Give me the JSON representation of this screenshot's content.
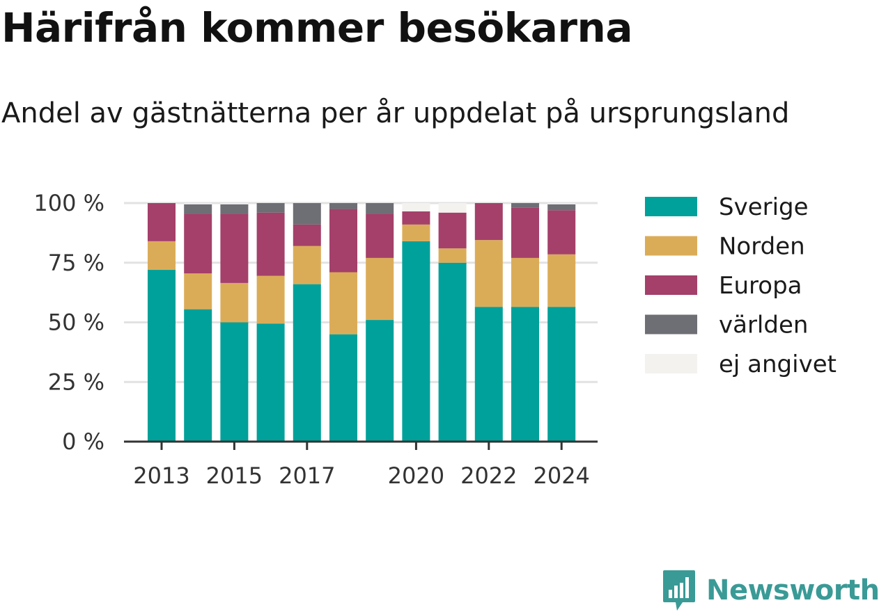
{
  "header": {
    "title": "Härifrån kommer besökarna",
    "subtitle": "Andel av gästnätterna per år uppdelat på ursprungsland"
  },
  "brand": {
    "name": "Newsworthy",
    "icon": "newsworthy-logo-icon",
    "color": "#3a9a96"
  },
  "chart_data": {
    "type": "bar",
    "stacked": true,
    "title": "Härifrån kommer besökarna",
    "subtitle": "Andel av gästnätterna per år uppdelat på ursprungsland",
    "xlabel": "",
    "ylabel": "",
    "x": [
      2013,
      2014,
      2015,
      2016,
      2017,
      2018,
      2019,
      2020,
      2021,
      2022,
      2023,
      2024
    ],
    "x_tick_labels": [
      "2013",
      "2015",
      "2017",
      "2020",
      "2022",
      "2024"
    ],
    "x_tick_positions": [
      2013,
      2015,
      2017,
      2020,
      2022,
      2024
    ],
    "y_ticks": [
      "0 %",
      "25 %",
      "50 %",
      "75 %",
      "100 %"
    ],
    "ylim": [
      0,
      100
    ],
    "grid": true,
    "legend_position": "right",
    "series": [
      {
        "name": "Sverige",
        "color": "#00a19a",
        "values": [
          72,
          55.5,
          50,
          49.5,
          66,
          45,
          51,
          84,
          75,
          56.5,
          56.5,
          56.5
        ]
      },
      {
        "name": "Norden",
        "color": "#dbac58",
        "values": [
          12,
          15,
          16.5,
          20,
          16,
          26,
          26,
          7,
          6,
          28,
          20.5,
          22
        ]
      },
      {
        "name": "Europa",
        "color": "#a4406a",
        "values": [
          16,
          25,
          29,
          26.5,
          9,
          26.5,
          18.5,
          5.5,
          15,
          15.5,
          21,
          18.5
        ]
      },
      {
        "name": "världen",
        "color": "#6e6e75",
        "values": [
          0,
          4,
          4,
          4,
          9,
          2.5,
          4.5,
          0,
          0,
          0,
          2,
          2.5
        ]
      },
      {
        "name": "ej angivet",
        "color": "#f3f2ef",
        "values": [
          0,
          0.5,
          0.5,
          0,
          0,
          0,
          0,
          3.5,
          4,
          0,
          0,
          0.5
        ]
      }
    ]
  }
}
